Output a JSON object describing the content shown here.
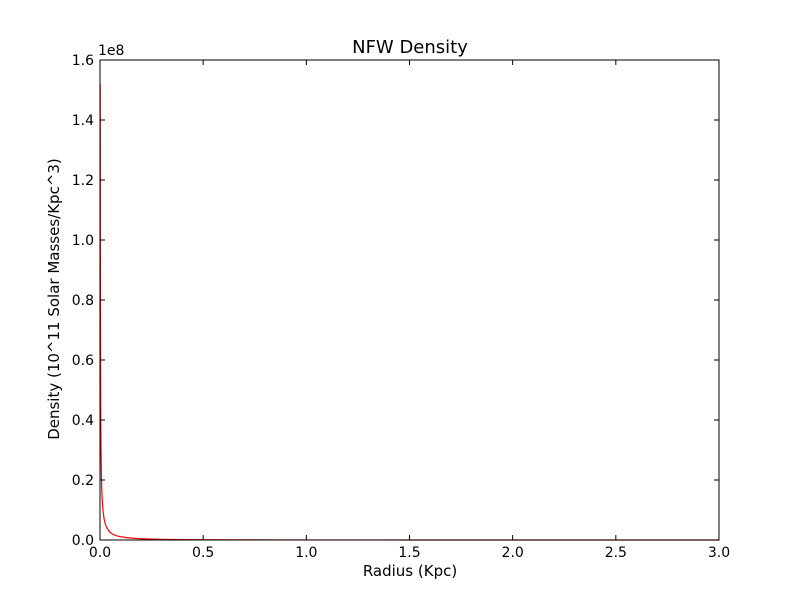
{
  "chart_data": {
    "type": "line",
    "title": "NFW Density",
    "xlabel": "Radius (Kpc)",
    "ylabel": "Density (10^11 Solar Masses/Kpc^3)",
    "y_offset_label": "1e8",
    "xlim": [
      0.0,
      3.0
    ],
    "ylim": [
      0.0,
      1.6
    ],
    "y_scale_factor": 100000000,
    "xticks": [
      "0.0",
      "0.5",
      "1.0",
      "1.5",
      "2.0",
      "2.5",
      "3.0"
    ],
    "yticks": [
      "0.0",
      "0.2",
      "0.4",
      "0.6",
      "0.8",
      "1.0",
      "1.2",
      "1.4",
      "1.6"
    ],
    "grid": false,
    "series": [
      {
        "color": "#ff0000",
        "x": [
          0.001,
          0.0015,
          0.002,
          0.003,
          0.004,
          0.005,
          0.0065,
          0.008,
          0.01,
          0.0125,
          0.015,
          0.02,
          0.025,
          0.03,
          0.04,
          0.05,
          0.06,
          0.08,
          0.1,
          0.13,
          0.16,
          0.2,
          0.25,
          0.3,
          0.4,
          0.5,
          0.7,
          1.0,
          1.5,
          2.0,
          2.5,
          3.0
        ],
        "y": [
          1.52,
          1.0,
          0.76,
          0.5,
          0.37,
          0.3,
          0.23,
          0.18,
          0.145,
          0.115,
          0.095,
          0.07,
          0.055,
          0.045,
          0.033,
          0.025,
          0.02,
          0.014,
          0.011,
          0.008,
          0.0058,
          0.0042,
          0.003,
          0.0022,
          0.0013,
          0.0009,
          0.0005,
          0.0002,
          0.0001,
          5e-05,
          3e-05,
          2e-05
        ]
      }
    ]
  }
}
